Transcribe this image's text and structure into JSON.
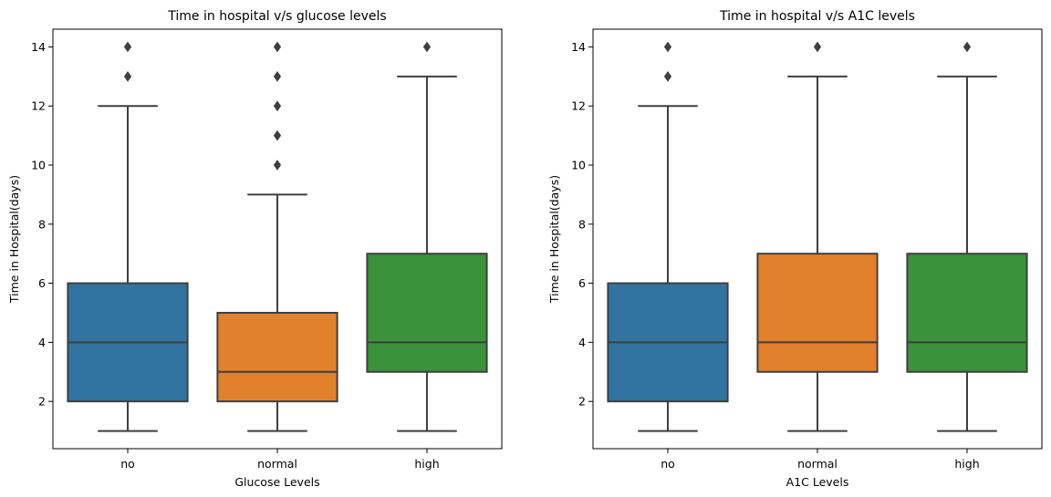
{
  "chart_data": [
    {
      "type": "box",
      "title": "Time in hospital v/s glucose levels",
      "xlabel": "Glucose Levels",
      "ylabel": "Time in Hospital(days)",
      "ylim": [
        0.4,
        14.6
      ],
      "yticks": [
        2,
        4,
        6,
        8,
        10,
        12,
        14
      ],
      "categories": [
        "no",
        "normal",
        "high"
      ],
      "colors": [
        "#3274a1",
        "#e1812c",
        "#3a923a"
      ],
      "boxes": [
        {
          "category": "no",
          "whisker_low": 1,
          "q1": 2,
          "median": 4,
          "q3": 6,
          "whisker_high": 12,
          "outliers": [
            13,
            14
          ]
        },
        {
          "category": "normal",
          "whisker_low": 1,
          "q1": 2,
          "median": 3,
          "q3": 5,
          "whisker_high": 9,
          "outliers": [
            10,
            11,
            12,
            13,
            14
          ]
        },
        {
          "category": "high",
          "whisker_low": 1,
          "q1": 3,
          "median": 4,
          "q3": 7,
          "whisker_high": 13,
          "outliers": [
            14
          ]
        }
      ],
      "grid": false
    },
    {
      "type": "box",
      "title": "Time in hospital v/s A1C levels",
      "xlabel": "A1C Levels",
      "ylabel": "Time in Hospital(days)",
      "ylim": [
        0.4,
        14.6
      ],
      "yticks": [
        2,
        4,
        6,
        8,
        10,
        12,
        14
      ],
      "categories": [
        "no",
        "normal",
        "high"
      ],
      "colors": [
        "#3274a1",
        "#e1812c",
        "#3a923a"
      ],
      "boxes": [
        {
          "category": "no",
          "whisker_low": 1,
          "q1": 2,
          "median": 4,
          "q3": 6,
          "whisker_high": 12,
          "outliers": [
            13,
            14
          ]
        },
        {
          "category": "normal",
          "whisker_low": 1,
          "q1": 3,
          "median": 4,
          "q3": 7,
          "whisker_high": 13,
          "outliers": [
            14
          ]
        },
        {
          "category": "high",
          "whisker_low": 1,
          "q1": 3,
          "median": 4,
          "q3": 7,
          "whisker_high": 13,
          "outliers": [
            14
          ]
        }
      ],
      "grid": false
    }
  ]
}
